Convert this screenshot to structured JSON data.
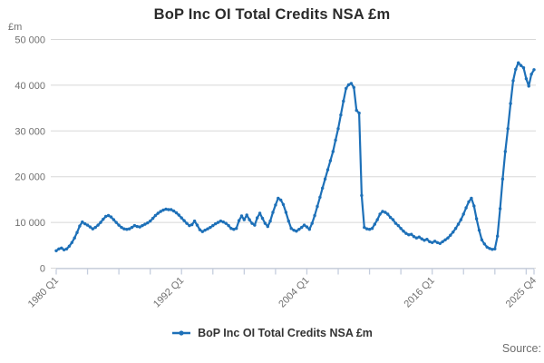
{
  "chart": {
    "title": "BoP Inc OI Total Credits NSA £m",
    "legend_label": "BoP Inc OI Total Credits NSA £m",
    "source_label": "Source:"
  },
  "chart_data": {
    "type": "line",
    "title": "BoP Inc OI Total Credits NSA £m",
    "ylabel": "£m",
    "xlabel": "",
    "series_name": "BoP Inc OI Total Credits NSA £m",
    "frequency": "quarterly",
    "x_start": "1980 Q1",
    "x_end": "2025 Q4",
    "ylim": [
      0,
      50000
    ],
    "grid": true,
    "legend_position": "bottom",
    "y_ticks": [
      0,
      10000,
      20000,
      30000,
      40000,
      50000
    ],
    "y_tick_labels": [
      "0",
      "10 000",
      "20 000",
      "30 000",
      "40 000",
      "50 000"
    ],
    "x_tick_labels": [
      {
        "label": "1980 Q1",
        "q": 0
      },
      {
        "label": "1992 Q1",
        "q": 48
      },
      {
        "label": "2004 Q1",
        "q": 96
      },
      {
        "label": "2016 Q1",
        "q": 144
      },
      {
        "label": "2025 Q4",
        "q": 183
      }
    ],
    "minor_tick_every_quarters": 12,
    "colors": {
      "line": "#1d70b8",
      "grid": "#d8d8d8",
      "axis": "#c5cede",
      "tick_text": "#707070",
      "title_text": "#2b2b2b"
    },
    "values": [
      3800,
      4200,
      4400,
      4000,
      4200,
      4800,
      5600,
      6600,
      7800,
      9200,
      10100,
      9700,
      9400,
      9000,
      8600,
      8900,
      9400,
      10000,
      10700,
      11300,
      11500,
      11200,
      10600,
      10000,
      9400,
      8900,
      8600,
      8500,
      8600,
      8900,
      9300,
      9100,
      9000,
      9300,
      9600,
      9900,
      10300,
      10900,
      11500,
      12000,
      12400,
      12700,
      12900,
      12800,
      12800,
      12500,
      12100,
      11600,
      11000,
      10400,
      9800,
      9300,
      9500,
      10300,
      9400,
      8400,
      8000,
      8300,
      8600,
      8900,
      9300,
      9700,
      10000,
      10300,
      10100,
      9800,
      9300,
      8700,
      8500,
      8700,
      10400,
      11400,
      10600,
      11600,
      10600,
      9800,
      9400,
      11000,
      12000,
      10900,
      9800,
      9100,
      10300,
      12200,
      13800,
      15300,
      14900,
      13900,
      12200,
      10300,
      8700,
      8300,
      8100,
      8500,
      8900,
      9400,
      9000,
      8500,
      9800,
      11500,
      13500,
      15500,
      17500,
      19500,
      21500,
      23500,
      25500,
      28000,
      30500,
      33500,
      36500,
      39300,
      40100,
      40400,
      39500,
      34500,
      33900,
      15900,
      8900,
      8600,
      8500,
      8700,
      9600,
      10600,
      11800,
      12400,
      12200,
      11800,
      11100,
      10600,
      9800,
      9300,
      8700,
      8100,
      7600,
      7300,
      7400,
      6900,
      6600,
      6800,
      6400,
      6100,
      6300,
      5800,
      5600,
      5900,
      5600,
      5400,
      5800,
      6200,
      6600,
      7200,
      7900,
      8700,
      9600,
      10600,
      11800,
      13200,
      14500,
      15300,
      13600,
      10800,
      8300,
      6200,
      5300,
      4600,
      4300,
      4100,
      4200,
      7000,
      13000,
      19500,
      25500,
      30500,
      36000,
      41000,
      43500,
      44900,
      44300,
      43800,
      41400,
      39800,
      42400,
      43400
    ]
  }
}
